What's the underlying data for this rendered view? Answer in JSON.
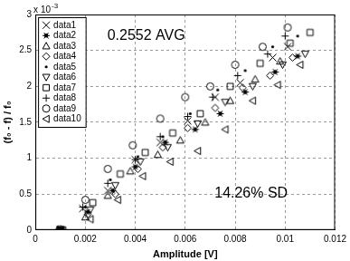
{
  "chart_data": {
    "type": "scatter",
    "x_label": "Amplitude [V]",
    "y_label": "(f₀ - f) / f₀",
    "y_multiplier": {
      "base": "x 10",
      "exponent": "-3"
    },
    "annotations": [
      "0.2552 AVG",
      "14.26% SD"
    ],
    "xlim": [
      0,
      0.012
    ],
    "xticks": [
      0,
      0.002,
      0.004,
      0.006,
      0.008,
      0.01,
      0.012
    ],
    "ylim": [
      0,
      3
    ],
    "yticks": [
      0,
      0.5,
      1,
      1.5,
      2,
      2.5,
      3
    ],
    "grid": true,
    "legend": "upper left",
    "series": [
      {
        "name": "data1",
        "color": "#000000",
        "marker": "x",
        "x": [
          0.001,
          0.0019,
          0.0029,
          0.004,
          0.005,
          0.0061,
          0.0072,
          0.0082,
          0.0095,
          0.0101
        ],
        "values": [
          0,
          0.3,
          0.55,
          0.98,
          1.22,
          1.52,
          1.85,
          2.05,
          2.4,
          2.55
        ]
      },
      {
        "name": "data2",
        "color": "#000000",
        "marker": "asterisk",
        "x": [
          0.0011,
          0.0021,
          0.0031,
          0.004,
          0.0052,
          0.0064,
          0.0074,
          0.0084,
          0.0096,
          0.0105
        ],
        "values": [
          0,
          0.25,
          0.55,
          0.88,
          1.22,
          1.4,
          1.62,
          1.92,
          2.2,
          2.42
        ]
      },
      {
        "name": "data3",
        "color": "#000000",
        "marker": "triangle-up",
        "x": [
          0.0009,
          0.002,
          0.0029,
          0.0038,
          0.0049,
          0.0058,
          0.0068,
          0.0078,
          0.0088,
          0.0098
        ],
        "values": [
          0.01,
          0.18,
          0.48,
          0.82,
          1.05,
          1.25,
          1.5,
          1.8,
          2.1,
          2.35
        ]
      },
      {
        "name": "data4",
        "color": "#000000",
        "marker": "diamond",
        "x": [
          0.001,
          0.0021,
          0.0032,
          0.0041,
          0.0051,
          0.0061,
          0.0072,
          0.0083,
          0.0094,
          0.0103
        ],
        "values": [
          0,
          0.22,
          0.5,
          0.85,
          1.15,
          1.42,
          1.7,
          1.98,
          2.15,
          2.4
        ]
      },
      {
        "name": "data5",
        "color": "#000000",
        "marker": "point",
        "x": [
          0.001,
          0.002,
          0.003,
          0.0041,
          0.0051,
          0.0062,
          0.0073,
          0.0084,
          0.0095,
          0.0105
        ],
        "values": [
          0.02,
          0.32,
          0.7,
          1.02,
          1.3,
          1.62,
          1.95,
          2.22,
          2.55,
          2.7
        ]
      },
      {
        "name": "data6",
        "color": "#000000",
        "marker": "triangle-down",
        "x": [
          0.001,
          0.0022,
          0.0032,
          0.0042,
          0.0053,
          0.0065,
          0.0076,
          0.0087,
          0.0099,
          0.0108
        ],
        "values": [
          0,
          0.28,
          0.62,
          0.95,
          1.15,
          1.48,
          1.78,
          2.0,
          2.3,
          2.45
        ]
      },
      {
        "name": "data7",
        "color": "#000000",
        "marker": "square",
        "x": [
          0.0011,
          0.0023,
          0.0034,
          0.0044,
          0.0055,
          0.0066,
          0.0078,
          0.009,
          0.0102,
          0.011
        ],
        "values": [
          0,
          0.38,
          0.78,
          1.08,
          1.35,
          1.62,
          2.0,
          2.32,
          2.6,
          2.75
        ]
      },
      {
        "name": "data8",
        "color": "#000000",
        "marker": "plus",
        "x": [
          0.0009,
          0.0019,
          0.0029,
          0.004,
          0.005,
          0.0061,
          0.0071,
          0.0081,
          0.0093,
          0.01
        ],
        "values": [
          0,
          0.32,
          0.65,
          0.98,
          1.3,
          1.58,
          1.85,
          2.15,
          2.45,
          2.7
        ]
      },
      {
        "name": "data9",
        "color": "#000000",
        "marker": "circle",
        "x": [
          0.001,
          0.002,
          0.0029,
          0.0039,
          0.005,
          0.006,
          0.007,
          0.008,
          0.0091,
          0.0101
        ],
        "values": [
          0.01,
          0.42,
          0.85,
          1.18,
          1.55,
          1.85,
          2.0,
          2.3,
          2.55,
          2.82
        ]
      },
      {
        "name": "data10",
        "color": "#000000",
        "marker": "triangle-left",
        "x": [
          0.001,
          0.0022,
          0.0033,
          0.0043,
          0.0054,
          0.0065,
          0.0076,
          0.0087,
          0.0097,
          0.0106
        ],
        "values": [
          0,
          0.15,
          0.42,
          0.75,
          0.95,
          1.1,
          1.4,
          1.8,
          2.02,
          2.3
        ]
      }
    ]
  }
}
